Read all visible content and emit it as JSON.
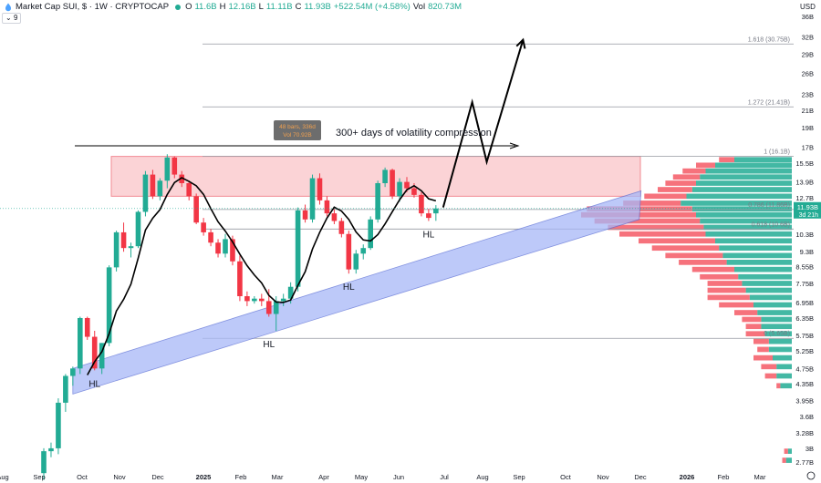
{
  "header": {
    "symbol": "Market Cap SUI, $ · 1W · CRYPTOCAP",
    "open_label": "O",
    "open": "11.6B",
    "high_label": "H",
    "high": "12.16B",
    "low_label": "L",
    "low": "11.11B",
    "close_label": "C",
    "close": "11.93B",
    "change": "+522.54M (+4.58%)",
    "vol_label": "Vol",
    "vol": "820.73M",
    "indicator_count": "9",
    "currency": "USD"
  },
  "colors": {
    "up": "#22ab94",
    "down": "#f23645",
    "zone": "#f7b8bd",
    "channel": "#a8b8f7",
    "vp_up": "#22ab94",
    "vp_down": "#f23645"
  },
  "price_axis": {
    "ticks": [
      "36B",
      "32B",
      "29B",
      "26B",
      "23B",
      "21B",
      "19B",
      "17B",
      "15.5B",
      "13.9B",
      "12.7B",
      "10.3B",
      "9.3B",
      "8.55B",
      "7.75B",
      "6.95B",
      "6.35B",
      "5.75B",
      "5.25B",
      "4.75B",
      "4.35B",
      "3.95B",
      "3.6B",
      "3.28B",
      "3B",
      "2.77B"
    ],
    "current_price": "11.93B",
    "countdown": "3d 21h"
  },
  "time_axis": {
    "labels": [
      "Aug",
      "Sep",
      "Oct",
      "Nov",
      "Dec",
      "2025",
      "Feb",
      "Mar",
      "Apr",
      "May",
      "Jun",
      "Jul",
      "Aug",
      "Sep",
      "Oct",
      "Nov",
      "Dec",
      "2026",
      "Feb",
      "Mar"
    ]
  },
  "annotations": {
    "range_bars": "48 bars, 336d",
    "range_vol": "Vol 70.92B",
    "compression_text": "300+ days of volatility compression",
    "hl_labels": [
      "HL",
      "HL",
      "HL",
      "HL"
    ],
    "fib_1618": "1.618 (30.75B)",
    "fib_1272": "1.272 (21.41B)",
    "fib_1": "1 (16.1B)",
    "fib_0786": "0.786 (11.86B)",
    "fib_0618": "0.618 (10.6B)",
    "fib_0": "0 (5.65B)"
  },
  "chart_data": {
    "type": "candlestick",
    "title": "Market Cap SUI, $ · 1W · CRYPTOCAP",
    "y_scale": "log",
    "ylim": [
      2.7,
      37
    ],
    "unit": "B USD",
    "candles": [
      {
        "o": 2.6,
        "h": 3.0,
        "l": 2.5,
        "c": 2.95
      },
      {
        "o": 2.95,
        "h": 3.1,
        "l": 2.85,
        "c": 3.0
      },
      {
        "o": 3.0,
        "h": 4.0,
        "l": 2.9,
        "c": 3.9
      },
      {
        "o": 3.9,
        "h": 4.6,
        "l": 3.7,
        "c": 4.55
      },
      {
        "o": 4.55,
        "h": 4.8,
        "l": 4.3,
        "c": 4.75
      },
      {
        "o": 4.75,
        "h": 6.4,
        "l": 4.6,
        "c": 6.35
      },
      {
        "o": 6.35,
        "h": 6.4,
        "l": 5.6,
        "c": 5.7
      },
      {
        "o": 5.7,
        "h": 5.9,
        "l": 4.7,
        "c": 4.75
      },
      {
        "o": 4.75,
        "h": 5.5,
        "l": 4.6,
        "c": 5.5
      },
      {
        "o": 5.5,
        "h": 8.6,
        "l": 5.4,
        "c": 8.5
      },
      {
        "o": 8.5,
        "h": 10.5,
        "l": 8.3,
        "c": 10.4
      },
      {
        "o": 10.4,
        "h": 11.0,
        "l": 9.3,
        "c": 9.5
      },
      {
        "o": 9.5,
        "h": 9.8,
        "l": 9.0,
        "c": 9.6
      },
      {
        "o": 9.6,
        "h": 11.8,
        "l": 9.5,
        "c": 11.7
      },
      {
        "o": 11.7,
        "h": 14.8,
        "l": 11.4,
        "c": 14.5
      },
      {
        "o": 14.5,
        "h": 14.9,
        "l": 12.6,
        "c": 12.8
      },
      {
        "o": 12.8,
        "h": 14.2,
        "l": 12.5,
        "c": 14.0
      },
      {
        "o": 14.0,
        "h": 16.3,
        "l": 13.4,
        "c": 16.0
      },
      {
        "o": 16.0,
        "h": 16.1,
        "l": 14.2,
        "c": 14.5
      },
      {
        "o": 14.5,
        "h": 14.8,
        "l": 13.5,
        "c": 13.8
      },
      {
        "o": 13.8,
        "h": 14.0,
        "l": 12.5,
        "c": 12.8
      },
      {
        "o": 12.8,
        "h": 13.0,
        "l": 10.9,
        "c": 11.0
      },
      {
        "o": 11.0,
        "h": 11.3,
        "l": 10.2,
        "c": 10.4
      },
      {
        "o": 10.4,
        "h": 10.6,
        "l": 9.6,
        "c": 9.8
      },
      {
        "o": 9.8,
        "h": 10.0,
        "l": 9.0,
        "c": 9.2
      },
      {
        "o": 9.2,
        "h": 10.3,
        "l": 9.0,
        "c": 10.0
      },
      {
        "o": 10.0,
        "h": 10.2,
        "l": 8.6,
        "c": 8.8
      },
      {
        "o": 8.8,
        "h": 9.1,
        "l": 7.0,
        "c": 7.2
      },
      {
        "o": 7.2,
        "h": 7.4,
        "l": 6.8,
        "c": 7.0
      },
      {
        "o": 7.0,
        "h": 7.2,
        "l": 6.9,
        "c": 7.1
      },
      {
        "o": 7.1,
        "h": 7.3,
        "l": 6.8,
        "c": 7.0
      },
      {
        "o": 7.0,
        "h": 7.5,
        "l": 6.4,
        "c": 6.5
      },
      {
        "o": 6.5,
        "h": 7.2,
        "l": 5.9,
        "c": 7.0
      },
      {
        "o": 7.0,
        "h": 7.3,
        "l": 6.8,
        "c": 7.1
      },
      {
        "o": 7.1,
        "h": 7.8,
        "l": 6.9,
        "c": 7.6
      },
      {
        "o": 7.6,
        "h": 12.0,
        "l": 7.4,
        "c": 11.8
      },
      {
        "o": 11.8,
        "h": 12.2,
        "l": 11.0,
        "c": 11.2
      },
      {
        "o": 11.2,
        "h": 14.5,
        "l": 11.0,
        "c": 14.2
      },
      {
        "o": 14.2,
        "h": 14.6,
        "l": 12.2,
        "c": 12.5
      },
      {
        "o": 12.5,
        "h": 12.8,
        "l": 11.4,
        "c": 11.6
      },
      {
        "o": 11.6,
        "h": 11.9,
        "l": 10.9,
        "c": 11.1
      },
      {
        "o": 11.1,
        "h": 11.3,
        "l": 10.1,
        "c": 10.3
      },
      {
        "o": 10.3,
        "h": 10.5,
        "l": 8.2,
        "c": 8.4
      },
      {
        "o": 8.4,
        "h": 9.4,
        "l": 8.2,
        "c": 9.2
      },
      {
        "o": 9.2,
        "h": 9.7,
        "l": 8.9,
        "c": 9.5
      },
      {
        "o": 9.5,
        "h": 11.4,
        "l": 9.4,
        "c": 11.2
      },
      {
        "o": 11.2,
        "h": 14.0,
        "l": 11.0,
        "c": 13.8
      },
      {
        "o": 13.8,
        "h": 15.1,
        "l": 13.5,
        "c": 14.9
      },
      {
        "o": 14.9,
        "h": 15.0,
        "l": 12.6,
        "c": 12.8
      },
      {
        "o": 12.8,
        "h": 14.2,
        "l": 12.4,
        "c": 13.9
      },
      {
        "o": 13.9,
        "h": 14.3,
        "l": 13.1,
        "c": 13.4
      },
      {
        "o": 13.4,
        "h": 13.8,
        "l": 12.7,
        "c": 12.9
      },
      {
        "o": 12.9,
        "h": 13.1,
        "l": 11.4,
        "c": 11.6
      },
      {
        "o": 11.6,
        "h": 11.9,
        "l": 11.1,
        "c": 11.3
      },
      {
        "o": 11.6,
        "h": 12.16,
        "l": 11.11,
        "c": 11.93
      }
    ],
    "fib_levels": [
      {
        "label": "1.618",
        "value": 30.75
      },
      {
        "label": "1.272",
        "value": 21.41
      },
      {
        "label": "1",
        "value": 16.1
      },
      {
        "label": "0.786",
        "value": 11.86
      },
      {
        "label": "0.618",
        "value": 10.6
      },
      {
        "label": "0",
        "value": 5.65
      }
    ],
    "resistance_zone": [
      12.8,
      16.1
    ],
    "volume_profile": [
      {
        "p": 15.8,
        "up": 0.3,
        "down": 0.08
      },
      {
        "p": 15.3,
        "up": 0.4,
        "down": 0.1
      },
      {
        "p": 14.8,
        "up": 0.45,
        "down": 0.12
      },
      {
        "p": 14.3,
        "up": 0.48,
        "down": 0.14
      },
      {
        "p": 13.8,
        "up": 0.5,
        "down": 0.16
      },
      {
        "p": 13.3,
        "up": 0.52,
        "down": 0.18
      },
      {
        "p": 12.8,
        "up": 0.55,
        "down": 0.22
      },
      {
        "p": 12.3,
        "up": 0.58,
        "down": 0.3
      },
      {
        "p": 11.9,
        "up": 0.52,
        "down": 0.55
      },
      {
        "p": 11.5,
        "up": 0.5,
        "down": 0.6
      },
      {
        "p": 11.1,
        "up": 0.48,
        "down": 0.55
      },
      {
        "p": 10.7,
        "up": 0.46,
        "down": 0.5
      },
      {
        "p": 10.3,
        "up": 0.45,
        "down": 0.45
      },
      {
        "p": 9.9,
        "up": 0.4,
        "down": 0.4
      },
      {
        "p": 9.5,
        "up": 0.38,
        "down": 0.35
      },
      {
        "p": 9.1,
        "up": 0.36,
        "down": 0.3
      },
      {
        "p": 8.75,
        "up": 0.34,
        "down": 0.25
      },
      {
        "p": 8.4,
        "up": 0.3,
        "down": 0.22
      },
      {
        "p": 8.05,
        "up": 0.28,
        "down": 0.2
      },
      {
        "p": 7.75,
        "up": 0.26,
        "down": 0.18
      },
      {
        "p": 7.45,
        "up": 0.24,
        "down": 0.2
      },
      {
        "p": 7.15,
        "up": 0.22,
        "down": 0.22
      },
      {
        "p": 6.85,
        "up": 0.2,
        "down": 0.18
      },
      {
        "p": 6.55,
        "up": 0.18,
        "down": 0.12
      },
      {
        "p": 6.3,
        "up": 0.16,
        "down": 0.1
      },
      {
        "p": 6.05,
        "up": 0.16,
        "down": 0.08
      },
      {
        "p": 5.8,
        "up": 0.14,
        "down": 0.1
      },
      {
        "p": 5.55,
        "up": 0.12,
        "down": 0.08
      },
      {
        "p": 5.3,
        "up": 0.12,
        "down": 0.06
      },
      {
        "p": 5.05,
        "up": 0.1,
        "down": 0.1
      },
      {
        "p": 4.8,
        "up": 0.08,
        "down": 0.08
      },
      {
        "p": 4.55,
        "up": 0.08,
        "down": 0.06
      },
      {
        "p": 4.3,
        "up": 0.06,
        "down": 0.02
      },
      {
        "p": 2.95,
        "up": 0.02,
        "down": 0.02
      },
      {
        "p": 2.8,
        "up": 0.03,
        "down": 0.02
      }
    ],
    "projection": [
      {
        "week": 55,
        "v": 12.0
      },
      {
        "week": 59,
        "v": 22.0
      },
      {
        "week": 61,
        "v": 15.6
      },
      {
        "week": 66,
        "v": 31.5
      }
    ],
    "hl_points": [
      {
        "week": 7,
        "v": 4.7
      },
      {
        "week": 31,
        "v": 5.9
      },
      {
        "week": 42,
        "v": 8.2
      },
      {
        "week": 53,
        "v": 11.1
      }
    ]
  }
}
